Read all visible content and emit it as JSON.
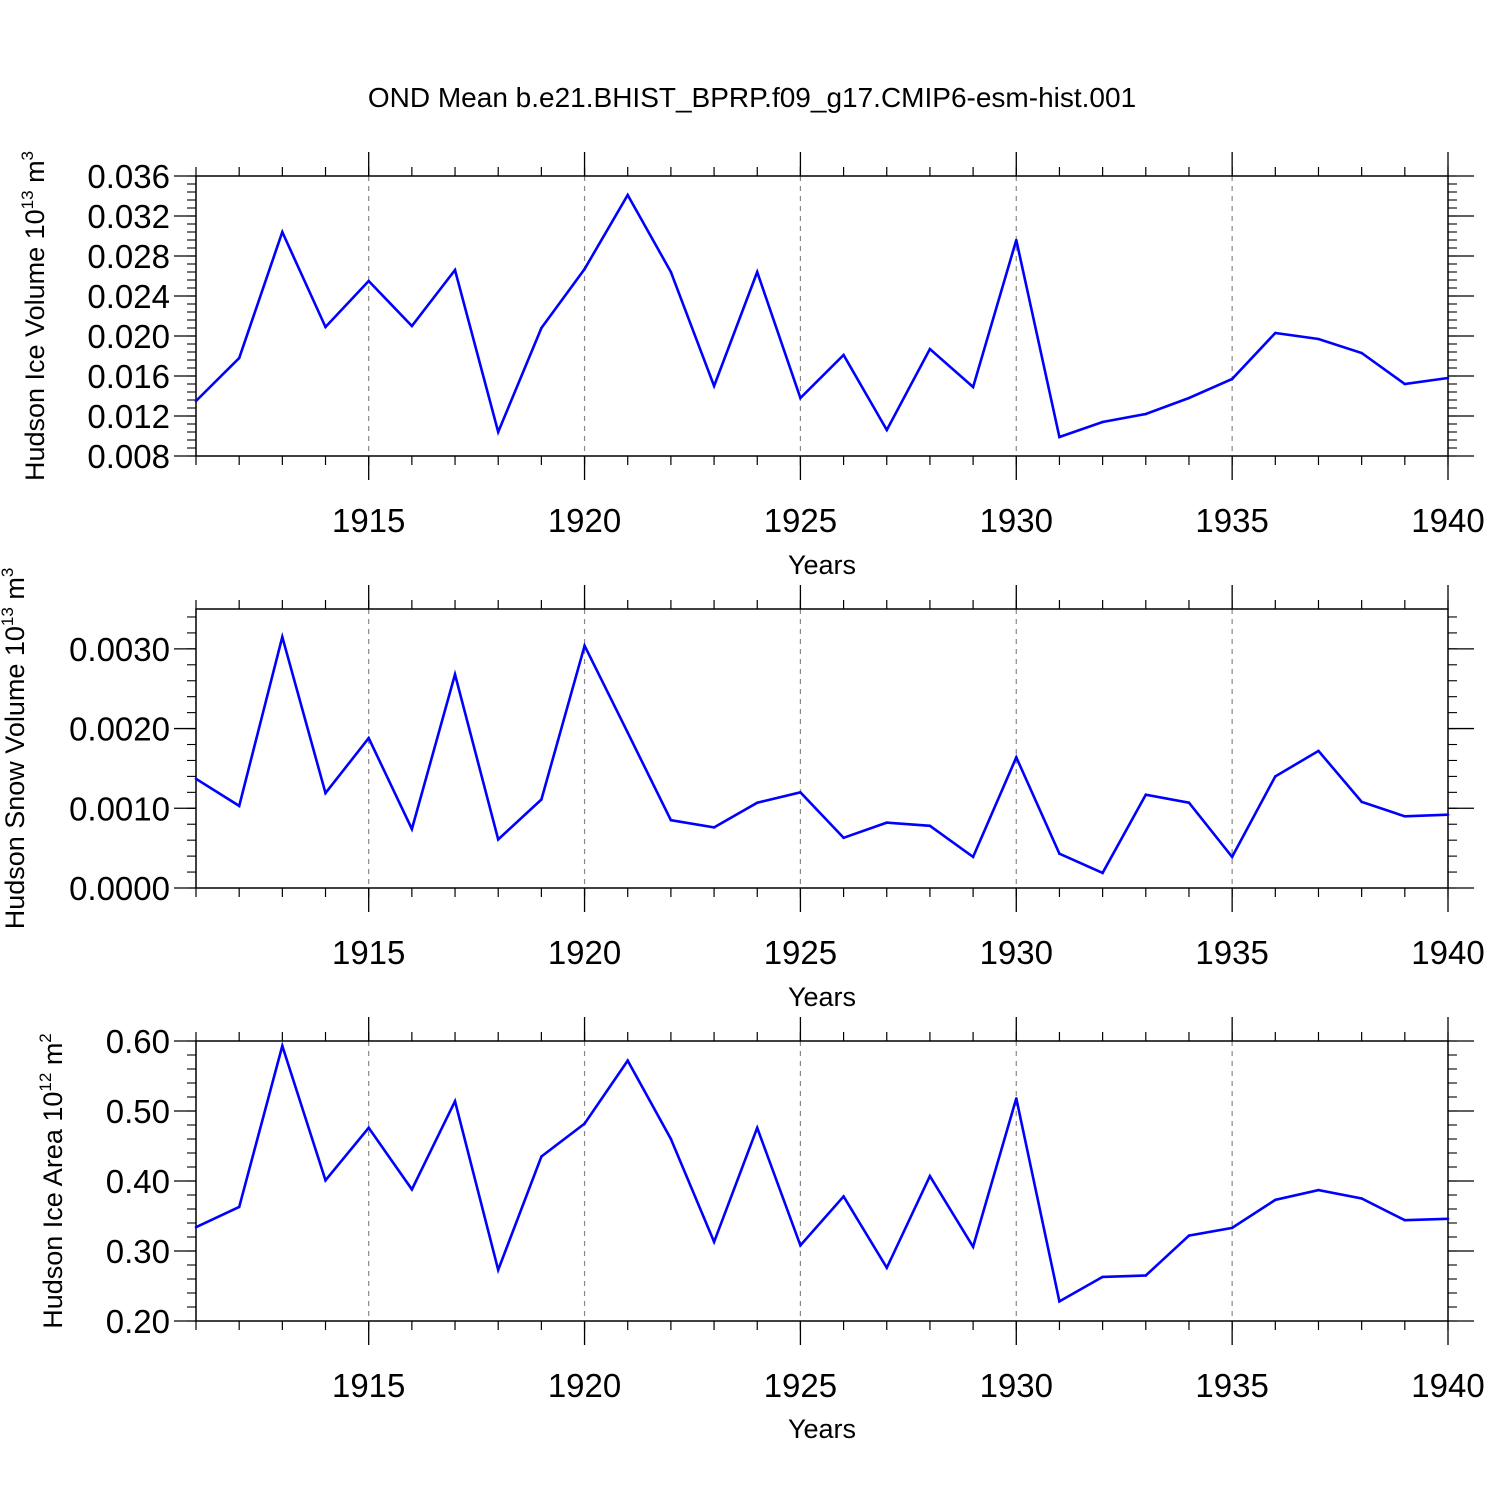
{
  "title": "OND Mean b.e21.BHIST_BPRP.f09_g17.CMIP6-esm-hist.001",
  "chart_data": [
    {
      "type": "line",
      "xlabel": "Years",
      "ylabel": {
        "text": "Hudson Ice Volume 10",
        "exponent": "13",
        "unit": " m",
        "unit_exponent": "3"
      },
      "xlim": [
        1911,
        1940
      ],
      "ylim": [
        0.008,
        0.036
      ],
      "xticks": [
        "1915",
        "1920",
        "1925",
        "1930",
        "1935",
        "1940"
      ],
      "yticks": [
        "0.008",
        "0.012",
        "0.016",
        "0.020",
        "0.024",
        "0.028",
        "0.032",
        "0.036"
      ],
      "grid": "vertical dashed at major x ticks",
      "line_color": "#0000ff",
      "x": [
        1911,
        1912,
        1913,
        1914,
        1915,
        1916,
        1917,
        1918,
        1919,
        1920,
        1921,
        1922,
        1923,
        1924,
        1925,
        1926,
        1927,
        1928,
        1929,
        1930,
        1931,
        1932,
        1933,
        1934,
        1935,
        1936,
        1937,
        1938,
        1939,
        1940
      ],
      "values": [
        0.0135,
        0.0178,
        0.0304,
        0.0209,
        0.0255,
        0.021,
        0.0266,
        0.0104,
        0.0208,
        0.0267,
        0.0341,
        0.0264,
        0.015,
        0.0264,
        0.0138,
        0.0181,
        0.0106,
        0.0187,
        0.0149,
        0.0296,
        0.0099,
        0.0114,
        0.0122,
        0.0138,
        0.0157,
        0.0203,
        0.0197,
        0.0183,
        0.0152,
        0.0158
      ]
    },
    {
      "type": "line",
      "xlabel": "Years",
      "ylabel": {
        "text": "Hudson Snow Volume 10",
        "exponent": "13",
        "unit": " m",
        "unit_exponent": "3"
      },
      "xlim": [
        1911,
        1940
      ],
      "ylim": [
        0.0,
        0.0035
      ],
      "xticks": [
        "1915",
        "1920",
        "1925",
        "1930",
        "1935",
        "1940"
      ],
      "yticks": [
        "0.0000",
        "0.0010",
        "0.0020",
        "0.0030"
      ],
      "grid": "vertical dashed at major x ticks",
      "line_color": "#0000ff",
      "x": [
        1911,
        1912,
        1913,
        1914,
        1915,
        1916,
        1917,
        1918,
        1919,
        1920,
        1921,
        1922,
        1923,
        1924,
        1925,
        1926,
        1927,
        1928,
        1929,
        1930,
        1931,
        1932,
        1933,
        1934,
        1935,
        1936,
        1937,
        1938,
        1939,
        1940
      ],
      "values": [
        0.00137,
        0.00103,
        0.00315,
        0.00119,
        0.00188,
        0.00074,
        0.00268,
        0.00061,
        0.00111,
        0.00304,
        0.00195,
        0.00085,
        0.00076,
        0.00107,
        0.0012,
        0.00063,
        0.00082,
        0.00078,
        0.00039,
        0.00164,
        0.00043,
        0.00019,
        0.00117,
        0.00107,
        0.00039,
        0.0014,
        0.00172,
        0.00108,
        0.0009,
        0.00092
      ]
    },
    {
      "type": "line",
      "xlabel": "Years",
      "ylabel": {
        "text": "Hudson Ice Area 10",
        "exponent": "12",
        "unit": " m",
        "unit_exponent": "2"
      },
      "xlim": [
        1911,
        1940
      ],
      "ylim": [
        0.2,
        0.6
      ],
      "xticks": [
        "1915",
        "1920",
        "1925",
        "1930",
        "1935",
        "1940"
      ],
      "yticks": [
        "0.20",
        "0.30",
        "0.40",
        "0.50",
        "0.60"
      ],
      "grid": "vertical dashed at major x ticks",
      "line_color": "#0000ff",
      "x": [
        1911,
        1912,
        1913,
        1914,
        1915,
        1916,
        1917,
        1918,
        1919,
        1920,
        1921,
        1922,
        1923,
        1924,
        1925,
        1926,
        1927,
        1928,
        1929,
        1930,
        1931,
        1932,
        1933,
        1934,
        1935,
        1936,
        1937,
        1938,
        1939,
        1940
      ],
      "values": [
        0.334,
        0.363,
        0.593,
        0.401,
        0.476,
        0.388,
        0.514,
        0.273,
        0.435,
        0.482,
        0.572,
        0.46,
        0.313,
        0.476,
        0.308,
        0.378,
        0.276,
        0.407,
        0.306,
        0.518,
        0.228,
        0.263,
        0.265,
        0.322,
        0.333,
        0.373,
        0.387,
        0.375,
        0.344,
        0.346
      ]
    }
  ]
}
